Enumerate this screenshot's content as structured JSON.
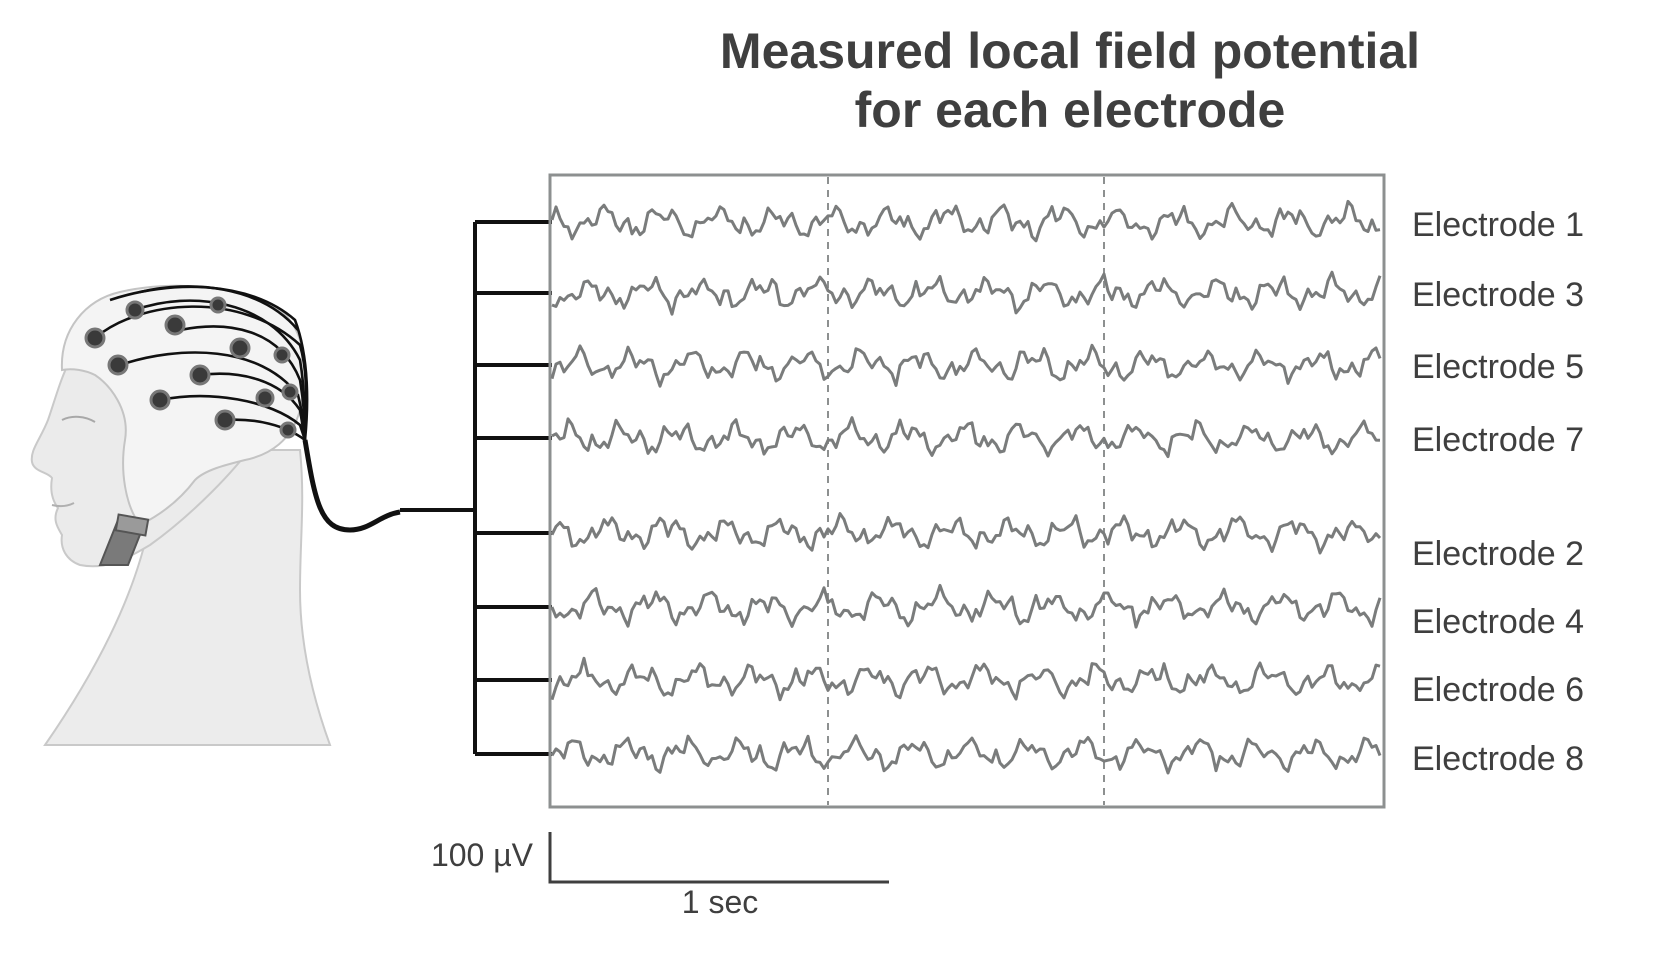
{
  "title_line1": "Measured local field potential",
  "title_line2": "for each electrode",
  "electrodes": [
    {
      "label": "Electrode 1"
    },
    {
      "label": "Electrode 3"
    },
    {
      "label": "Electrode 5"
    },
    {
      "label": "Electrode 7"
    },
    {
      "label": "Electrode 2"
    },
    {
      "label": "Electrode 4"
    },
    {
      "label": "Electrode 6"
    },
    {
      "label": "Electrode 8"
    }
  ],
  "scale_bar": {
    "amplitude_label": "100 µV",
    "time_label": "1 sec"
  },
  "colors": {
    "trace": "#7a7c7c",
    "frame": "#8d9090",
    "connector": "#111111",
    "text": "#3f3f3f",
    "skin": "#e9e9e9",
    "cap": "#f2f2f2",
    "electrode": "#3a3a3a"
  },
  "icons": {
    "head": "human-head-with-eeg-cap-icon"
  }
}
